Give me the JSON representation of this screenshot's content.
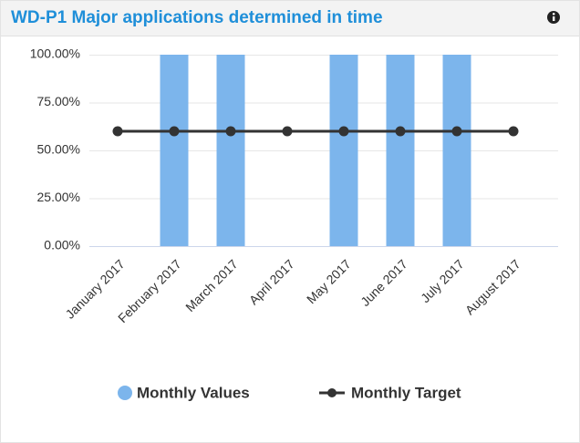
{
  "chart_data": {
    "type": "bar",
    "title": "WD-P1 Major applications determined in time",
    "categories": [
      "January 2017",
      "February 2017",
      "March 2017",
      "April 2017",
      "May 2017",
      "June 2017",
      "July 2017",
      "August 2017"
    ],
    "series": [
      {
        "name": "Monthly Values",
        "type": "bar",
        "color": "#7cb5ec",
        "values": [
          0,
          100,
          100,
          0,
          100,
          100,
          100,
          0
        ]
      },
      {
        "name": "Monthly Target",
        "type": "line",
        "color": "#333333",
        "values": [
          60,
          60,
          60,
          60,
          60,
          60,
          60,
          60
        ]
      }
    ],
    "ylim": [
      0,
      100
    ],
    "yticks": [
      {
        "value": 0,
        "label": "0.00%"
      },
      {
        "value": 25,
        "label": "25.00%"
      },
      {
        "value": 50,
        "label": "50.00%"
      },
      {
        "value": 75,
        "label": "75.00%"
      },
      {
        "value": 100,
        "label": "100.00%"
      }
    ],
    "grid": true,
    "legend": "bottom"
  }
}
